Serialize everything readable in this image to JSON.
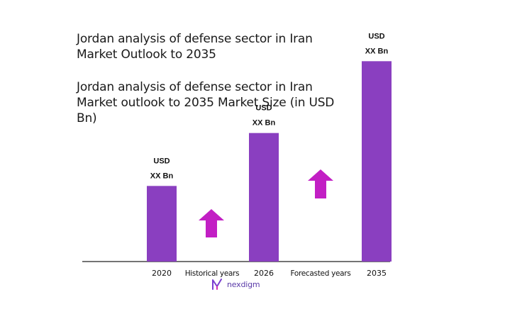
{
  "chart_data": {
    "type": "bar",
    "title": "Jordan analysis of defense sector in Iran Market Outlook to 2035",
    "subtitle": "Jordan analysis of defense sector in Iran Market outlook to 2035 Market Size (in USD Bn)",
    "categories": [
      "2020",
      "2026",
      "2035"
    ],
    "values": [
      1.0,
      1.7,
      2.65
    ],
    "value_labels": [
      [
        "USD",
        "XX Bn"
      ],
      [
        "USD",
        "XX Bn"
      ],
      [
        "USD",
        "XX Bn"
      ]
    ],
    "ylim": [
      0,
      3.0
    ],
    "grid": false,
    "annotations": [
      "Historical years",
      "Forecasted years"
    ],
    "bar_color": "#8a3fc0",
    "arrow_color": "#c21fc4",
    "axis_color": "#222222"
  },
  "logo": {
    "text": "nexdigm",
    "color": "#5a3aa8"
  }
}
